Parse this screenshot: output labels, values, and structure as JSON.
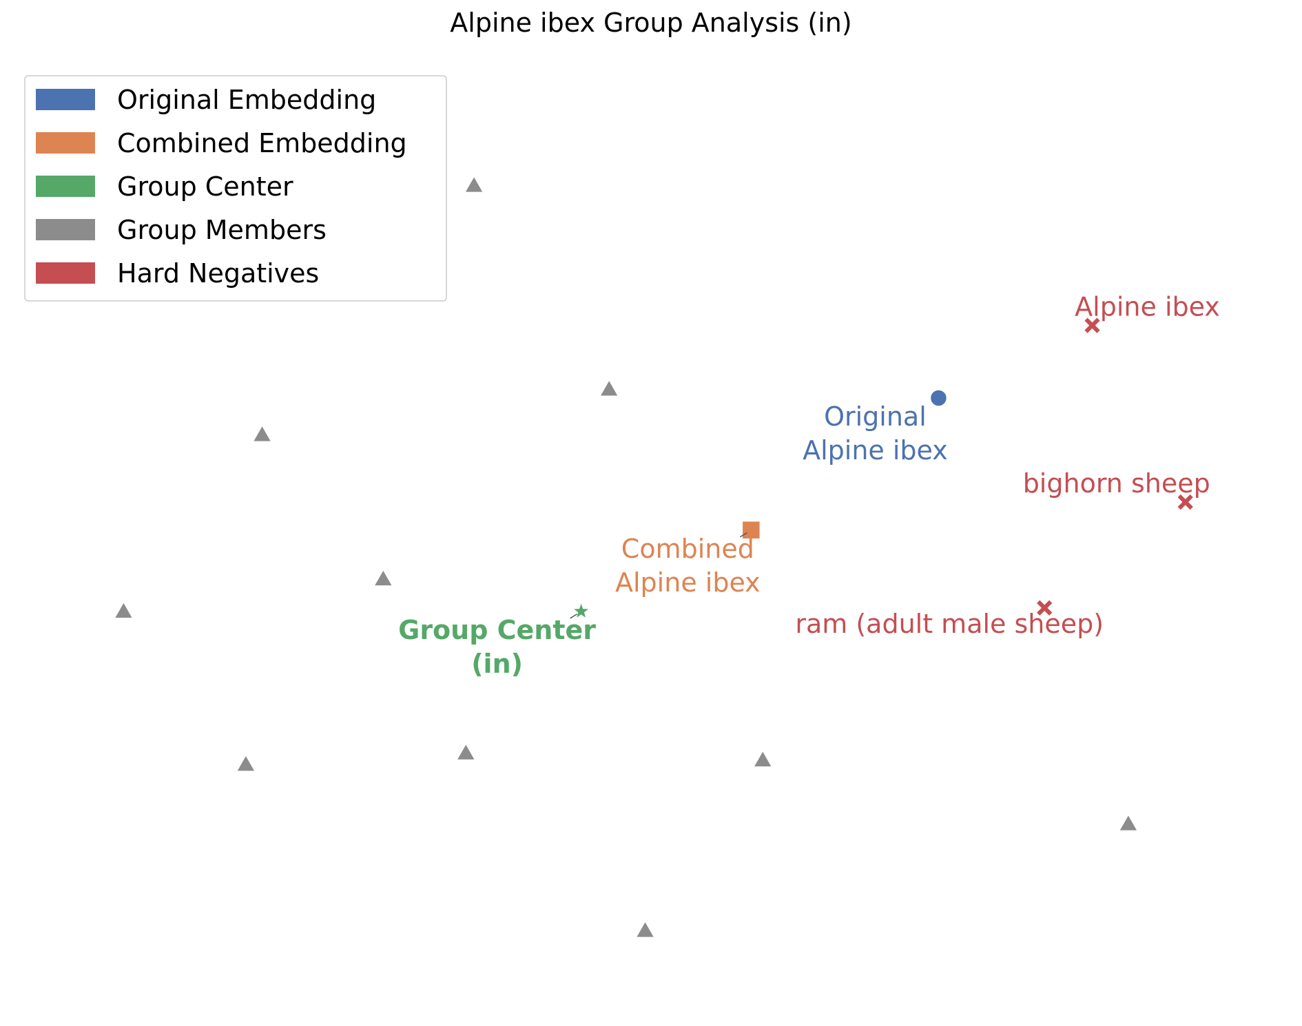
{
  "chart_data": {
    "type": "scatter",
    "title": "Alpine ibex Group Analysis (in)",
    "axes_visible": false,
    "grid": false,
    "legend_position": "top-left",
    "xlim": [
      0,
      100
    ],
    "ylim": [
      0,
      100
    ],
    "colors": {
      "original": "#4C72B0",
      "combined": "#DD8452",
      "center": "#55A868",
      "members": "#8C8C8C",
      "negatives": "#C44E52"
    },
    "legend": [
      {
        "label": "Original Embedding",
        "color": "#4C72B0"
      },
      {
        "label": "Combined Embedding",
        "color": "#DD8452"
      },
      {
        "label": "Group Center",
        "color": "#55A868"
      },
      {
        "label": "Group Members",
        "color": "#8C8C8C"
      },
      {
        "label": "Hard Negatives",
        "color": "#C44E52"
      }
    ],
    "series": [
      {
        "name": "Original Embedding",
        "marker": "circle",
        "color": "#4C72B0",
        "points": [
          {
            "x": 74.7,
            "y": 66.3,
            "label": [
              "Original",
              "Alpine ibex"
            ]
          }
        ]
      },
      {
        "name": "Combined Embedding",
        "marker": "square",
        "color": "#DD8452",
        "points": [
          {
            "x": 58.6,
            "y": 51.2,
            "label": [
              "Combined",
              "Alpine ibex"
            ]
          }
        ]
      },
      {
        "name": "Group Center",
        "marker": "star",
        "color": "#55A868",
        "bold_label": true,
        "points": [
          {
            "x": 44.0,
            "y": 41.9,
            "label": [
              "Group Center",
              "(in)"
            ]
          }
        ]
      },
      {
        "name": "Group Members",
        "marker": "triangle",
        "color": "#8C8C8C",
        "points": [
          {
            "x": 34.8,
            "y": 90.6
          },
          {
            "x": 46.4,
            "y": 67.3
          },
          {
            "x": 16.6,
            "y": 62.1
          },
          {
            "x": 27.0,
            "y": 45.6
          },
          {
            "x": 4.7,
            "y": 41.9
          },
          {
            "x": 15.2,
            "y": 24.4
          },
          {
            "x": 34.1,
            "y": 25.7
          },
          {
            "x": 59.6,
            "y": 24.9
          },
          {
            "x": 91.0,
            "y": 17.6
          },
          {
            "x": 49.5,
            "y": 5.4
          }
        ]
      },
      {
        "name": "Hard Negatives",
        "marker": "x",
        "color": "#C44E52",
        "points": [
          {
            "x": 87.9,
            "y": 74.6,
            "label": [
              "Alpine ibex"
            ]
          },
          {
            "x": 95.9,
            "y": 54.4,
            "label": [
              "bighorn sheep"
            ]
          },
          {
            "x": 83.8,
            "y": 42.3,
            "label": [
              "ram (adult male sheep)"
            ]
          }
        ]
      }
    ]
  }
}
